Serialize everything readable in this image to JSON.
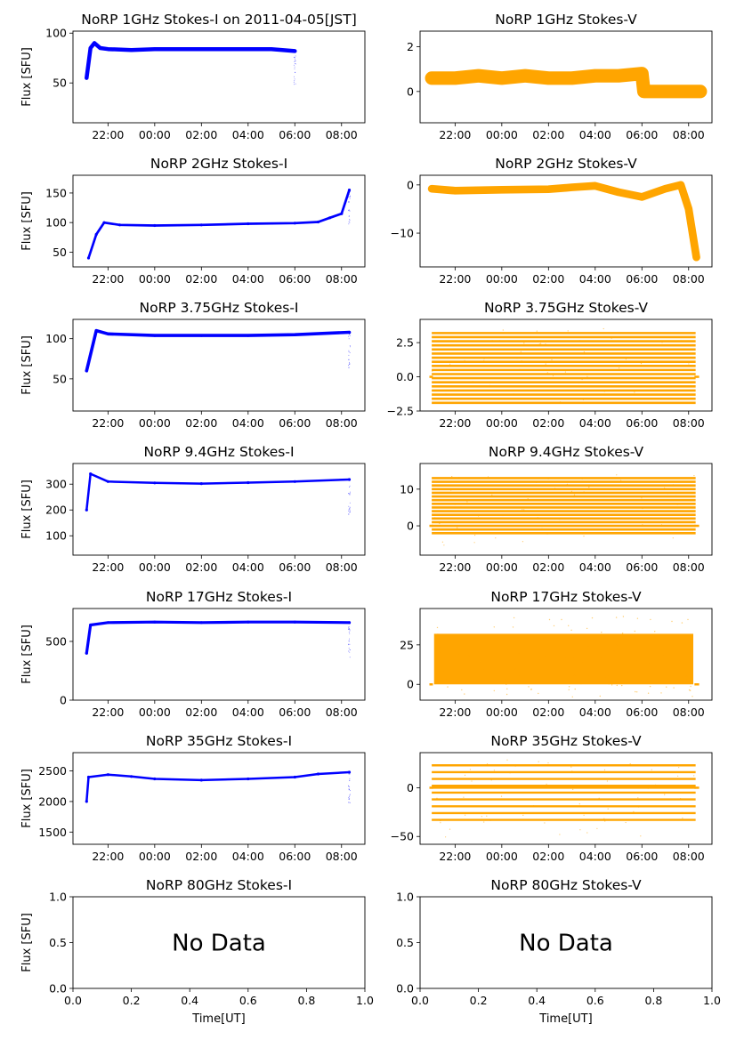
{
  "figure": {
    "xlabel_bottom": "Time[UT]",
    "ylabel": "Flux [SFU]",
    "no_data_text": "No Data"
  },
  "colors": {
    "stokes_i": "#0000ff",
    "stokes_v": "#ffa500",
    "axes": "#000000"
  },
  "time_ticks": [
    "22:00",
    "00:00",
    "02:00",
    "04:00",
    "06:00",
    "08:00"
  ],
  "chart_data": [
    {
      "type": "scatter",
      "title": "NoRP 1GHz Stokes-I on 2011-04-05[JST]",
      "ylabel": "Flux [SFU]",
      "ylim": [
        10,
        102
      ],
      "yticks": [
        50,
        100
      ],
      "color": "#0000ff",
      "band": 2,
      "x": [
        "21:05",
        "21:15",
        "21:25",
        "21:40",
        "22:00",
        "23:00",
        "00:00",
        "01:00",
        "02:00",
        "03:00",
        "04:00",
        "05:00",
        "06:00"
      ],
      "y": [
        55,
        85,
        90,
        85,
        84,
        83,
        84,
        84,
        84,
        84,
        84,
        84,
        82
      ]
    },
    {
      "type": "scatter",
      "title": "NoRP 1GHz Stokes-V",
      "ylabel": "",
      "ylim": [
        -1.4,
        2.7
      ],
      "yticks": [
        0,
        2
      ],
      "color": "#ffa500",
      "band": 0.3,
      "x": [
        "21:00",
        "22:00",
        "23:00",
        "00:00",
        "01:00",
        "02:00",
        "03:00",
        "04:00",
        "05:00",
        "06:00",
        "06:05",
        "08:30"
      ],
      "y": [
        0.6,
        0.6,
        0.7,
        0.6,
        0.7,
        0.6,
        0.6,
        0.7,
        0.7,
        0.8,
        0,
        0
      ]
    },
    {
      "type": "scatter",
      "title": "NoRP 2GHz Stokes-I",
      "ylabel": "Flux [SFU]",
      "ylim": [
        25,
        180
      ],
      "yticks": [
        50,
        100,
        150
      ],
      "color": "#0000ff",
      "band": 2,
      "x": [
        "21:10",
        "21:30",
        "21:50",
        "22:30",
        "00:00",
        "02:00",
        "04:00",
        "06:00",
        "07:00",
        "07:30",
        "08:00",
        "08:20"
      ],
      "y": [
        40,
        80,
        100,
        96,
        95,
        96,
        98,
        99,
        101,
        108,
        115,
        155
      ]
    },
    {
      "type": "scatter",
      "title": "NoRP 2GHz Stokes-V",
      "ylabel": "",
      "ylim": [
        -17,
        2
      ],
      "yticks": [
        -10,
        0
      ],
      "color": "#ffa500",
      "band": 0.8,
      "x": [
        "21:00",
        "22:00",
        "00:00",
        "02:00",
        "03:00",
        "04:00",
        "05:00",
        "06:00",
        "07:00",
        "07:40",
        "08:00",
        "08:20"
      ],
      "y": [
        -0.8,
        -1.2,
        -1,
        -0.9,
        -0.5,
        -0.2,
        -1.5,
        -2.5,
        -0.8,
        0,
        -5,
        -15
      ]
    },
    {
      "type": "scatter",
      "title": "NoRP 3.75GHz Stokes-I",
      "ylabel": "Flux [SFU]",
      "ylim": [
        10,
        124
      ],
      "yticks": [
        50,
        100
      ],
      "color": "#0000ff",
      "band": 2,
      "x": [
        "21:05",
        "21:30",
        "22:00",
        "00:00",
        "02:00",
        "04:00",
        "06:00",
        "08:20"
      ],
      "y": [
        60,
        110,
        106,
        104,
        104,
        104,
        105,
        108
      ]
    },
    {
      "type": "scatter",
      "title": "NoRP 3.75GHz Stokes-V",
      "ylabel": "",
      "ylim": [
        -2.5,
        4.2
      ],
      "yticks": [
        -2.5,
        0.0,
        2.5
      ],
      "color": "#ffa500",
      "band": 0,
      "x": [],
      "y": []
    },
    {
      "type": "scatter",
      "title": "NoRP 9.4GHz Stokes-I",
      "ylabel": "Flux [SFU]",
      "ylim": [
        25,
        380
      ],
      "yticks": [
        100,
        200,
        300
      ],
      "color": "#0000ff",
      "band": 4,
      "x": [
        "21:05",
        "21:15",
        "22:00",
        "00:00",
        "02:00",
        "04:00",
        "06:00",
        "08:20"
      ],
      "y": [
        200,
        340,
        310,
        305,
        302,
        306,
        310,
        318
      ]
    },
    {
      "type": "scatter",
      "title": "NoRP 9.4GHz Stokes-V",
      "ylabel": "",
      "ylim": [
        -8,
        17
      ],
      "yticks": [
        0,
        10
      ],
      "color": "#ffa500",
      "band": 0,
      "x": [],
      "y": []
    },
    {
      "type": "scatter",
      "title": "NoRP 17GHz Stokes-I",
      "ylabel": "Flux [SFU]",
      "ylim": [
        0,
        780
      ],
      "yticks": [
        0,
        500
      ],
      "color": "#0000ff",
      "band": 12,
      "x": [
        "21:05",
        "21:15",
        "22:00",
        "00:00",
        "02:00",
        "04:00",
        "06:00",
        "08:20"
      ],
      "y": [
        400,
        640,
        660,
        665,
        660,
        665,
        665,
        660
      ]
    },
    {
      "type": "scatter",
      "title": "NoRP 17GHz Stokes-V",
      "ylabel": "",
      "ylim": [
        -10,
        48
      ],
      "yticks": [
        0,
        25
      ],
      "color": "#ffa500",
      "band": 0,
      "x": [],
      "y": []
    },
    {
      "type": "scatter",
      "title": "NoRP 35GHz Stokes-I",
      "ylabel": "Flux [SFU]",
      "ylim": [
        1300,
        2800
      ],
      "yticks": [
        1500,
        2000,
        2500
      ],
      "color": "#0000ff",
      "band": 12,
      "x": [
        "21:05",
        "21:10",
        "22:00",
        "23:00",
        "00:00",
        "02:00",
        "04:00",
        "06:00",
        "07:00",
        "08:20"
      ],
      "y": [
        2000,
        2400,
        2440,
        2410,
        2370,
        2350,
        2370,
        2400,
        2450,
        2480
      ]
    },
    {
      "type": "scatter",
      "title": "NoRP 35GHz Stokes-V",
      "ylabel": "",
      "ylim": [
        -58,
        36
      ],
      "yticks": [
        -50,
        0
      ],
      "color": "#ffa500",
      "band": 0,
      "x": [],
      "y": []
    },
    {
      "type": "scatter",
      "title": "NoRP 80GHz Stokes-I",
      "ylabel": "Flux [SFU]",
      "xlabel": "Time[UT]",
      "no_data": true,
      "xlim": [
        0,
        1
      ],
      "ylim": [
        0,
        1
      ],
      "xticks": [
        "0.0",
        "0.2",
        "0.4",
        "0.6",
        "0.8",
        "1.0"
      ],
      "yticks": [
        "0.0",
        "0.5",
        "1.0"
      ],
      "color": "#0000ff"
    },
    {
      "type": "scatter",
      "title": "NoRP 80GHz Stokes-V",
      "ylabel": "",
      "xlabel": "Time[UT]",
      "no_data": true,
      "xlim": [
        0,
        1
      ],
      "ylim": [
        0,
        1
      ],
      "xticks": [
        "0.0",
        "0.2",
        "0.4",
        "0.6",
        "0.8",
        "1.0"
      ],
      "yticks": [
        "0.0",
        "0.5",
        "1.0"
      ],
      "color": "#ffa500"
    }
  ]
}
